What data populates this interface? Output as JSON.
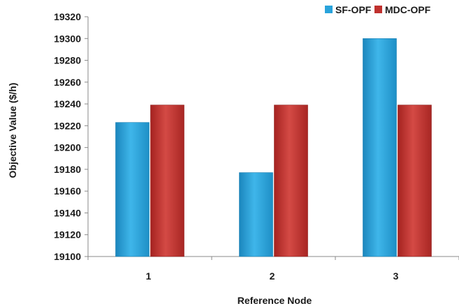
{
  "chart_data": {
    "type": "bar",
    "categories": [
      "1",
      "2",
      "3"
    ],
    "series": [
      {
        "name": "SF-OPF",
        "values": [
          19223,
          19177,
          19300
        ],
        "color": "#29a3db"
      },
      {
        "name": "MDC-OPF",
        "values": [
          19239,
          19239,
          19239
        ],
        "color": "#c0312e"
      }
    ],
    "xlabel": "Reference Node",
    "ylabel": "Objective Value ($/h)",
    "ylim": [
      19100,
      19320
    ],
    "yticks": [
      19100,
      19120,
      19140,
      19160,
      19180,
      19200,
      19220,
      19240,
      19260,
      19280,
      19300,
      19320
    ],
    "grid": false,
    "legend_position": "top-right"
  }
}
